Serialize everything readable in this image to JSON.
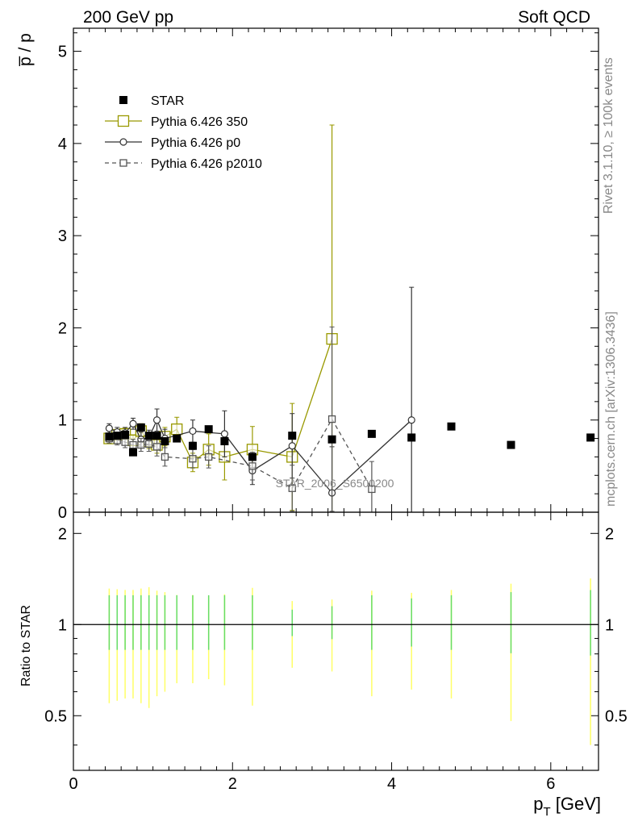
{
  "header": {
    "left": "200 GeV pp",
    "right": "Soft QCD"
  },
  "side_labels": {
    "rivet": "Rivet 3.1.10, ≥ 100k events",
    "mcplots": "mcplots.cern.ch [arXiv:1306.3436]"
  },
  "chart_data": {
    "type": "scatter",
    "title": "",
    "analysis_label": "STAR_2006_S6500200",
    "top_panel": {
      "ylabel": "p̅ / p",
      "ylim": [
        0,
        5.25
      ],
      "yticks": [
        0,
        1,
        2,
        3,
        4,
        5
      ],
      "ytick_labels": [
        "0",
        "1",
        "2",
        "3",
        "4",
        "5"
      ]
    },
    "ratio_panel": {
      "ylabel": "Ratio to STAR",
      "ylim": [
        0.33,
        2.35
      ],
      "yticks": [
        0.5,
        1,
        2
      ],
      "ytick_labels": [
        "0.5",
        "1",
        "2"
      ],
      "reference_line": 1
    },
    "xaxis": {
      "xlabel": "p_T [GeV]",
      "xlabel_main": "p",
      "xlabel_sub": "T",
      "xlabel_unit": " [GeV]",
      "xlim": [
        0,
        6.6
      ],
      "xticks": [
        0,
        2,
        4,
        6
      ],
      "xtick_labels": [
        "0",
        "2",
        "4",
        "6"
      ]
    },
    "legend": {
      "placement": "top-left",
      "entries": [
        "STAR",
        "Pythia 6.426 350",
        "Pythia 6.426 p0",
        "Pythia 6.426 p2010"
      ]
    },
    "series": [
      {
        "name": "STAR",
        "marker": "filled-square",
        "color": "#000000",
        "x": [
          0.45,
          0.55,
          0.65,
          0.75,
          0.85,
          0.95,
          1.05,
          1.15,
          1.3,
          1.5,
          1.7,
          1.9,
          2.25,
          2.75,
          3.25,
          3.75,
          4.25,
          4.75,
          5.5,
          6.5
        ],
        "y": [
          0.82,
          0.83,
          0.84,
          0.65,
          0.92,
          0.83,
          0.83,
          0.77,
          0.8,
          0.72,
          0.9,
          0.77,
          0.6,
          0.83,
          0.79,
          0.85,
          0.81,
          0.93,
          0.73,
          0.81
        ]
      },
      {
        "name": "Pythia 6.426 350",
        "marker": "open-square",
        "color": "#999900",
        "x": [
          0.45,
          0.55,
          0.65,
          0.75,
          0.85,
          0.95,
          1.05,
          1.15,
          1.3,
          1.5,
          1.7,
          1.9,
          2.25,
          2.75,
          3.25
        ],
        "y": [
          0.8,
          0.84,
          0.85,
          0.78,
          0.88,
          0.77,
          0.73,
          0.82,
          0.9,
          0.54,
          0.68,
          0.6,
          0.68,
          0.6,
          1.88
        ],
        "err": [
          0.05,
          0.05,
          0.06,
          0.06,
          0.08,
          0.08,
          0.09,
          0.1,
          0.13,
          0.1,
          0.17,
          0.25,
          0.25,
          0.58,
          2.32
        ]
      },
      {
        "name": "Pythia 6.426 p0",
        "marker": "open-circle",
        "color": "#333333",
        "x": [
          0.45,
          0.55,
          0.65,
          0.75,
          0.85,
          0.95,
          1.05,
          1.15,
          1.5,
          1.9,
          2.25,
          2.75,
          3.25,
          4.25
        ],
        "y": [
          0.91,
          0.87,
          0.86,
          0.96,
          0.79,
          0.81,
          1.0,
          0.8,
          0.88,
          0.85,
          0.45,
          0.72,
          0.21,
          1.0
        ],
        "err": [
          0.05,
          0.05,
          0.06,
          0.06,
          0.08,
          0.08,
          0.12,
          0.1,
          0.12,
          0.25,
          0.15,
          0.35,
          0.5,
          1.44
        ]
      },
      {
        "name": "Pythia 6.426 p2010",
        "marker": "open-square-small",
        "color": "#555555",
        "x": [
          0.45,
          0.55,
          0.65,
          0.75,
          0.85,
          0.95,
          1.05,
          1.15,
          1.5,
          1.7,
          2.25,
          2.75,
          3.25,
          3.75
        ],
        "y": [
          0.8,
          0.78,
          0.76,
          0.73,
          0.73,
          0.74,
          0.71,
          0.6,
          0.58,
          0.6,
          0.5,
          0.26,
          1.01,
          0.25
        ],
        "err": [
          0.05,
          0.05,
          0.06,
          0.06,
          0.07,
          0.08,
          0.1,
          0.1,
          0.1,
          0.12,
          0.15,
          0.25,
          1.0,
          0.3
        ]
      }
    ],
    "ratio_bands": {
      "x": [
        0.45,
        0.55,
        0.65,
        0.75,
        0.85,
        0.95,
        1.05,
        1.15,
        1.3,
        1.5,
        1.7,
        1.9,
        2.25,
        2.75,
        3.25,
        3.75,
        4.25,
        4.75,
        5.5,
        6.5
      ],
      "stat": [
        0.25,
        0.25,
        0.25,
        0.25,
        0.25,
        0.25,
        0.25,
        0.25,
        0.25,
        0.25,
        0.25,
        0.25,
        0.25,
        0.12,
        0.15,
        0.25,
        0.22,
        0.25,
        0.28,
        0.3
      ],
      "total": [
        0.45,
        0.44,
        0.43,
        0.43,
        0.45,
        0.47,
        0.42,
        0.4,
        0.36,
        0.36,
        0.34,
        0.37,
        0.46,
        0.28,
        0.3,
        0.42,
        0.39,
        0.43,
        0.52,
        0.6
      ]
    }
  }
}
